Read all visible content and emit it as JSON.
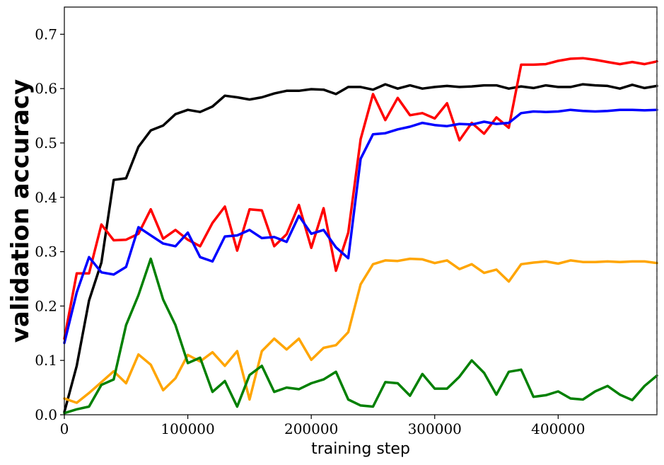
{
  "chart_data": {
    "type": "line",
    "title": "",
    "xlabel": "training step",
    "ylabel": "validation accuracy",
    "xlim": [
      0,
      480000
    ],
    "ylim": [
      0,
      0.75
    ],
    "xticks": [
      0,
      100000,
      200000,
      300000,
      400000
    ],
    "xtick_labels": [
      "0",
      "100000",
      "200000",
      "300000",
      "400000"
    ],
    "yticks": [
      0.0,
      0.1,
      0.2,
      0.3,
      0.4,
      0.5,
      0.6,
      0.7
    ],
    "ytick_labels": [
      "0.0",
      "0.1",
      "0.2",
      "0.3",
      "0.4",
      "0.5",
      "0.6",
      "0.7"
    ],
    "grid": false,
    "legend": "none",
    "vline_at": 480000,
    "series": [
      {
        "color": "#000000",
        "x": [
          0,
          10000,
          20000,
          30000,
          40000,
          50000,
          60000,
          70000,
          80000,
          90000,
          100000,
          110000,
          120000,
          130000,
          140000,
          150000,
          160000,
          170000,
          180000,
          190000,
          200000,
          210000,
          220000,
          230000,
          240000,
          250000,
          260000,
          270000,
          280000,
          290000,
          300000,
          310000,
          320000,
          330000,
          340000,
          350000,
          360000,
          370000,
          380000,
          390000,
          400000,
          410000,
          420000,
          430000,
          440000,
          450000,
          460000,
          470000,
          480000
        ],
        "y": [
          0.005,
          0.09,
          0.21,
          0.28,
          0.432,
          0.435,
          0.493,
          0.523,
          0.532,
          0.553,
          0.561,
          0.557,
          0.567,
          0.587,
          0.584,
          0.58,
          0.584,
          0.591,
          0.596,
          0.596,
          0.599,
          0.598,
          0.59,
          0.603,
          0.603,
          0.598,
          0.608,
          0.6,
          0.606,
          0.6,
          0.603,
          0.605,
          0.603,
          0.604,
          0.606,
          0.606,
          0.6,
          0.604,
          0.601,
          0.606,
          0.603,
          0.603,
          0.608,
          0.606,
          0.605,
          0.6,
          0.607,
          0.601,
          0.605
        ]
      },
      {
        "color": "#ff0000",
        "x": [
          0,
          10000,
          20000,
          30000,
          40000,
          50000,
          60000,
          70000,
          80000,
          90000,
          100000,
          110000,
          120000,
          130000,
          140000,
          150000,
          160000,
          170000,
          180000,
          190000,
          200000,
          210000,
          220000,
          230000,
          240000,
          250000,
          260000,
          270000,
          280000,
          290000,
          300000,
          310000,
          320000,
          330000,
          340000,
          350000,
          360000,
          370000,
          380000,
          390000,
          400000,
          410000,
          420000,
          430000,
          440000,
          450000,
          460000,
          470000,
          480000
        ],
        "y": [
          0.14,
          0.26,
          0.26,
          0.35,
          0.321,
          0.322,
          0.333,
          0.378,
          0.324,
          0.34,
          0.322,
          0.31,
          0.353,
          0.383,
          0.302,
          0.378,
          0.376,
          0.31,
          0.332,
          0.386,
          0.307,
          0.38,
          0.265,
          0.335,
          0.507,
          0.59,
          0.542,
          0.583,
          0.551,
          0.555,
          0.545,
          0.573,
          0.505,
          0.537,
          0.517,
          0.547,
          0.528,
          0.644,
          0.644,
          0.645,
          0.651,
          0.655,
          0.656,
          0.653,
          0.649,
          0.645,
          0.649,
          0.645,
          0.65
        ]
      },
      {
        "color": "#0000ff",
        "x": [
          0,
          10000,
          20000,
          30000,
          40000,
          50000,
          60000,
          70000,
          80000,
          90000,
          100000,
          110000,
          120000,
          130000,
          140000,
          150000,
          160000,
          170000,
          180000,
          190000,
          200000,
          210000,
          220000,
          230000,
          240000,
          250000,
          260000,
          270000,
          280000,
          290000,
          300000,
          310000,
          320000,
          330000,
          340000,
          350000,
          360000,
          370000,
          380000,
          390000,
          400000,
          410000,
          420000,
          430000,
          440000,
          450000,
          460000,
          470000,
          480000
        ],
        "y": [
          0.132,
          0.225,
          0.29,
          0.262,
          0.258,
          0.272,
          0.345,
          0.33,
          0.315,
          0.31,
          0.335,
          0.29,
          0.282,
          0.328,
          0.33,
          0.34,
          0.325,
          0.327,
          0.318,
          0.366,
          0.333,
          0.34,
          0.308,
          0.288,
          0.471,
          0.516,
          0.518,
          0.525,
          0.53,
          0.537,
          0.533,
          0.531,
          0.535,
          0.534,
          0.539,
          0.535,
          0.537,
          0.555,
          0.558,
          0.557,
          0.558,
          0.561,
          0.559,
          0.558,
          0.559,
          0.561,
          0.561,
          0.56,
          0.561
        ]
      },
      {
        "color": "#ffa500",
        "x": [
          0,
          10000,
          20000,
          30000,
          40000,
          50000,
          60000,
          70000,
          80000,
          90000,
          100000,
          110000,
          120000,
          130000,
          140000,
          150000,
          160000,
          170000,
          180000,
          190000,
          200000,
          210000,
          220000,
          230000,
          240000,
          250000,
          260000,
          270000,
          280000,
          290000,
          300000,
          310000,
          320000,
          330000,
          340000,
          350000,
          360000,
          370000,
          380000,
          390000,
          400000,
          410000,
          420000,
          430000,
          440000,
          450000,
          460000,
          470000,
          480000
        ],
        "y": [
          0.03,
          0.022,
          0.04,
          0.06,
          0.08,
          0.058,
          0.111,
          0.092,
          0.045,
          0.067,
          0.11,
          0.098,
          0.115,
          0.09,
          0.117,
          0.028,
          0.117,
          0.14,
          0.12,
          0.14,
          0.101,
          0.123,
          0.128,
          0.152,
          0.24,
          0.277,
          0.284,
          0.283,
          0.287,
          0.286,
          0.279,
          0.284,
          0.268,
          0.277,
          0.261,
          0.267,
          0.245,
          0.277,
          0.28,
          0.282,
          0.278,
          0.284,
          0.281,
          0.281,
          0.282,
          0.281,
          0.282,
          0.282,
          0.279
        ]
      },
      {
        "color": "#008000",
        "x": [
          0,
          10000,
          20000,
          30000,
          40000,
          50000,
          60000,
          70000,
          80000,
          90000,
          100000,
          110000,
          120000,
          130000,
          140000,
          150000,
          160000,
          170000,
          180000,
          190000,
          200000,
          210000,
          220000,
          230000,
          240000,
          250000,
          260000,
          270000,
          280000,
          290000,
          300000,
          310000,
          320000,
          330000,
          340000,
          350000,
          360000,
          370000,
          380000,
          390000,
          400000,
          410000,
          420000,
          430000,
          440000,
          450000,
          460000,
          470000,
          480000
        ],
        "y": [
          0.003,
          0.01,
          0.015,
          0.055,
          0.065,
          0.165,
          0.22,
          0.287,
          0.212,
          0.165,
          0.095,
          0.105,
          0.042,
          0.062,
          0.015,
          0.073,
          0.09,
          0.042,
          0.05,
          0.047,
          0.058,
          0.065,
          0.079,
          0.028,
          0.017,
          0.015,
          0.06,
          0.058,
          0.035,
          0.075,
          0.048,
          0.048,
          0.07,
          0.1,
          0.077,
          0.037,
          0.079,
          0.083,
          0.033,
          0.036,
          0.043,
          0.03,
          0.028,
          0.043,
          0.053,
          0.037,
          0.027,
          0.053,
          0.072
        ]
      }
    ]
  }
}
